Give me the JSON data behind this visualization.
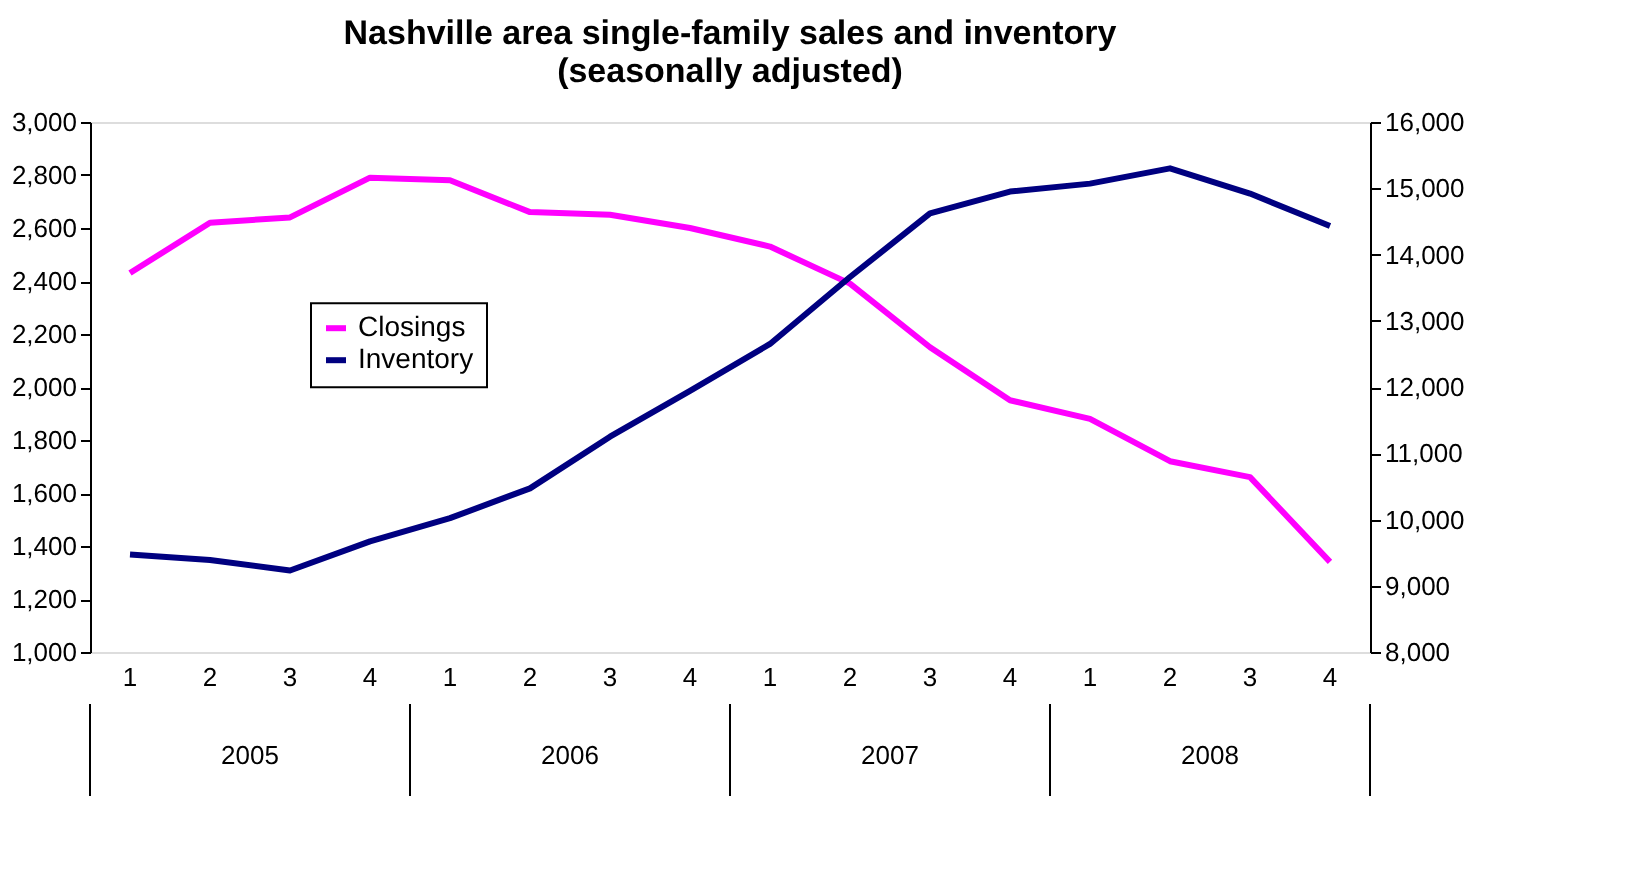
{
  "chart_data": {
    "type": "line",
    "title": [
      "Nashville area single-family sales and inventory",
      "(seasonally adjusted)"
    ],
    "categories": [
      "1",
      "2",
      "3",
      "4",
      "1",
      "2",
      "3",
      "4",
      "1",
      "2",
      "3",
      "4",
      "1",
      "2",
      "3",
      "4"
    ],
    "annotations": [
      "2005",
      "2006",
      "2007",
      "2008"
    ],
    "series": [
      {
        "name": "Closings",
        "color": "#ff00ff",
        "values": [
          2430,
          2620,
          2640,
          2790,
          2780,
          2660,
          2650,
          2600,
          2530,
          2390,
          2150,
          1950,
          1880,
          1720,
          1660,
          1340
        ]
      },
      {
        "name": "Inventory",
        "color": "#000080",
        "axis": "y2",
        "values": [
          9470,
          9390,
          9230,
          9670,
          10020,
          10470,
          11250,
          11940,
          12650,
          13660,
          14620,
          14950,
          15070,
          15300,
          14920,
          14430
        ]
      }
    ],
    "ylim": [
      1000,
      3000
    ],
    "yticks": [
      {
        "value": 1000,
        "label": "1,000"
      },
      {
        "value": 1200,
        "label": "1,200"
      },
      {
        "value": 1400,
        "label": "1,400"
      },
      {
        "value": 1600,
        "label": "1,600"
      },
      {
        "value": 1800,
        "label": "1,800"
      },
      {
        "value": 2000,
        "label": "2,000"
      },
      {
        "value": 2200,
        "label": "2,200"
      },
      {
        "value": 2400,
        "label": "2,400"
      },
      {
        "value": 2600,
        "label": "2,600"
      },
      {
        "value": 2800,
        "label": "2,800"
      },
      {
        "value": 3000,
        "label": "3,000"
      }
    ],
    "y2lim": [
      8000,
      16000
    ],
    "y2ticks": [
      {
        "value": 8000,
        "label": "8,000"
      },
      {
        "value": 9000,
        "label": "9,000"
      },
      {
        "value": 10000,
        "label": "10,000"
      },
      {
        "value": 11000,
        "label": "11,000"
      },
      {
        "value": 12000,
        "label": "12,000"
      },
      {
        "value": 13000,
        "label": "13,000"
      },
      {
        "value": 14000,
        "label": "14,000"
      },
      {
        "value": 15000,
        "label": "15,000"
      },
      {
        "value": 16000,
        "label": "16,000"
      }
    ],
    "legend": "left",
    "grid": false,
    "marker": "none",
    "line_style": "solid"
  }
}
